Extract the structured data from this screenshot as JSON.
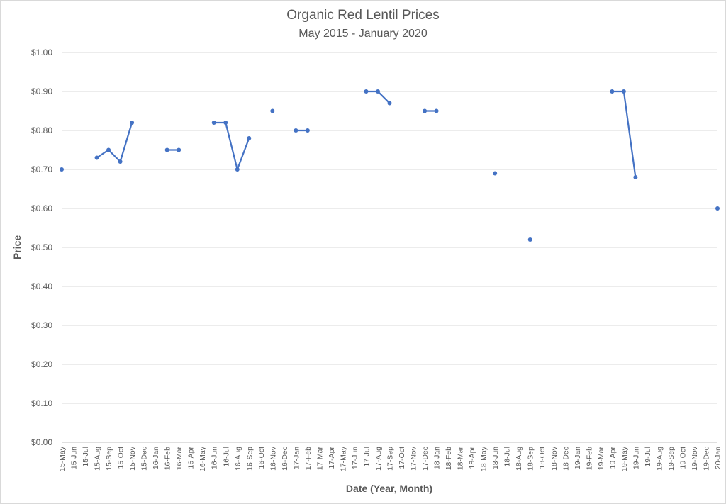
{
  "chart_data": {
    "type": "line",
    "title": "Organic Red Lentil Prices",
    "subtitle": "May 2015 - January 2020",
    "xlabel": "Date (Year, Month)",
    "ylabel": "Price",
    "ylim": [
      0,
      1.0
    ],
    "yticks": [
      "$0.00",
      "$0.10",
      "$0.20",
      "$0.30",
      "$0.40",
      "$0.50",
      "$0.60",
      "$0.70",
      "$0.80",
      "$0.90",
      "$1.00"
    ],
    "grid": true,
    "categories": [
      "15-May",
      "15-Jun",
      "15-Jul",
      "15-Aug",
      "15-Sep",
      "15-Oct",
      "15-Nov",
      "15-Dec",
      "16-Jan",
      "16-Feb",
      "16-Mar",
      "16-Apr",
      "16-May",
      "16-Jun",
      "16-Jul",
      "16-Aug",
      "16-Sep",
      "16-Oct",
      "16-Nov",
      "16-Dec",
      "17-Jan",
      "17-Feb",
      "17-Mar",
      "17-Apr",
      "17-May",
      "17-Jun",
      "17-Jul",
      "17-Aug",
      "17-Sep",
      "17-Oct",
      "17-Nov",
      "17-Dec",
      "18-Jan",
      "18-Feb",
      "18-Mar",
      "18-Apr",
      "18-May",
      "18-Jun",
      "18-Jul",
      "18-Aug",
      "18-Sep",
      "18-Oct",
      "18-Nov",
      "18-Dec",
      "19-Jan",
      "19-Feb",
      "19-Mar",
      "19-Apr",
      "19-May",
      "19-Jun",
      "19-Jul",
      "19-Aug",
      "19-Sep",
      "19-Oct",
      "19-Nov",
      "19-Dec",
      "20-Jan"
    ],
    "series": [
      {
        "values": [
          0.7,
          null,
          null,
          0.73,
          0.75,
          0.72,
          0.82,
          null,
          null,
          0.75,
          0.75,
          null,
          null,
          0.82,
          0.82,
          0.7,
          0.78,
          null,
          0.85,
          null,
          0.8,
          0.8,
          null,
          null,
          null,
          null,
          0.9,
          0.9,
          0.87,
          null,
          null,
          0.85,
          0.85,
          null,
          null,
          null,
          null,
          0.69,
          null,
          null,
          0.52,
          null,
          null,
          null,
          null,
          null,
          null,
          0.9,
          0.9,
          0.68,
          null,
          null,
          null,
          null,
          null,
          null,
          0.6
        ],
        "color": "#4472c4"
      }
    ]
  }
}
